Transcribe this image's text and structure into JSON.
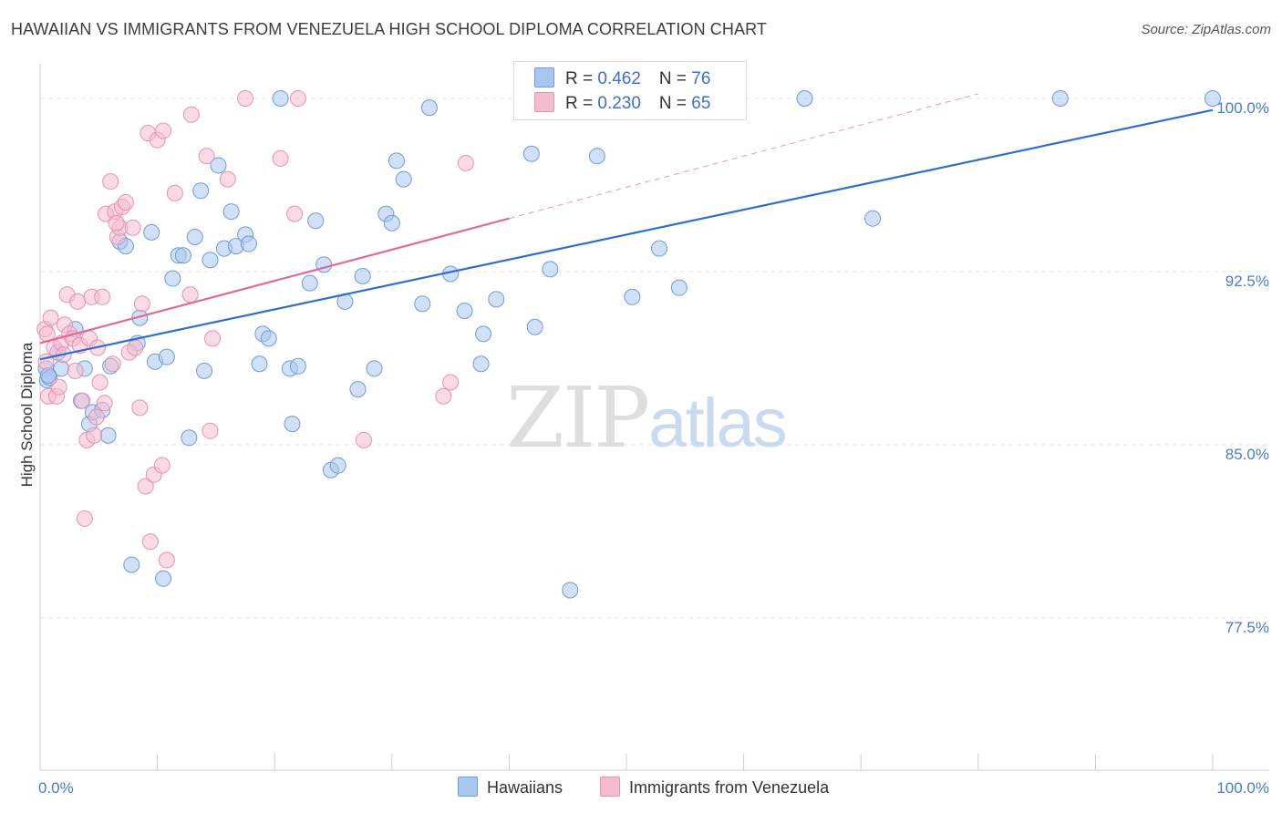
{
  "chart_data": {
    "type": "scatter",
    "title": "HAWAIIAN VS IMMIGRANTS FROM VENEZUELA HIGH SCHOOL DIPLOMA CORRELATION CHART",
    "source": "Source: ZipAtlas.com",
    "xlabel": "",
    "ylabel": "High School Diploma",
    "xlim": [
      0,
      100
    ],
    "ylim": [
      70.9,
      101.5
    ],
    "x_tick_labels": {
      "left": "0.0%",
      "right": "100.0%"
    },
    "y_ticks": [
      {
        "value": 100.0,
        "label": "100.0%"
      },
      {
        "value": 92.5,
        "label": "92.5%"
      },
      {
        "value": 85.0,
        "label": "85.0%"
      },
      {
        "value": 77.5,
        "label": "77.5%"
      }
    ],
    "watermark": {
      "zip": "ZIP",
      "atlas": "atlas"
    },
    "legend": [
      {
        "r_label": "R = ",
        "r_value": "0.462",
        "n_label": "N = ",
        "n_value": "76"
      },
      {
        "r_label": "R = ",
        "r_value": "0.230",
        "n_label": "N = ",
        "n_value": "65"
      }
    ],
    "series": [
      {
        "name": "Hawaiians",
        "color": "#a9c6ee",
        "stroke": "#6f9bd8",
        "line_color": "#2f6fcc",
        "trend": {
          "x0": 0,
          "y0": 88.7,
          "x1": 100,
          "y1": 99.5
        },
        "points": [
          [
            0.5,
            88.3
          ],
          [
            0.6,
            87.8
          ],
          [
            0.8,
            87.9
          ],
          [
            1.5,
            89.0
          ],
          [
            1.8,
            88.3
          ],
          [
            3.0,
            90.0
          ],
          [
            3.5,
            86.9
          ],
          [
            3.8,
            88.3
          ],
          [
            4.2,
            85.9
          ],
          [
            4.5,
            86.4
          ],
          [
            5.3,
            86.5
          ],
          [
            5.8,
            85.4
          ],
          [
            6.0,
            88.4
          ],
          [
            6.8,
            93.8
          ],
          [
            7.3,
            93.6
          ],
          [
            7.8,
            79.8
          ],
          [
            8.3,
            89.4
          ],
          [
            8.5,
            90.5
          ],
          [
            9.5,
            94.2
          ],
          [
            9.8,
            88.6
          ],
          [
            10.5,
            79.2
          ],
          [
            10.8,
            88.8
          ],
          [
            11.3,
            92.2
          ],
          [
            11.8,
            93.2
          ],
          [
            12.2,
            93.2
          ],
          [
            12.7,
            85.3
          ],
          [
            13.2,
            94.0
          ],
          [
            13.7,
            96.0
          ],
          [
            14.0,
            88.2
          ],
          [
            14.5,
            93.0
          ],
          [
            15.2,
            97.1
          ],
          [
            15.7,
            93.5
          ],
          [
            16.3,
            95.1
          ],
          [
            16.7,
            93.6
          ],
          [
            17.5,
            94.1
          ],
          [
            17.8,
            93.7
          ],
          [
            18.7,
            88.5
          ],
          [
            19.0,
            89.8
          ],
          [
            19.5,
            89.6
          ],
          [
            20.5,
            100.0
          ],
          [
            21.3,
            88.3
          ],
          [
            21.5,
            85.9
          ],
          [
            22.0,
            88.4
          ],
          [
            23.0,
            92.0
          ],
          [
            23.5,
            94.7
          ],
          [
            24.2,
            92.8
          ],
          [
            24.8,
            83.9
          ],
          [
            25.4,
            84.1
          ],
          [
            26.0,
            91.2
          ],
          [
            27.1,
            87.4
          ],
          [
            27.5,
            92.3
          ],
          [
            28.5,
            88.3
          ],
          [
            29.5,
            95.0
          ],
          [
            30.0,
            94.6
          ],
          [
            30.4,
            97.3
          ],
          [
            31.0,
            96.5
          ],
          [
            32.6,
            91.1
          ],
          [
            33.2,
            99.6
          ],
          [
            35.0,
            92.4
          ],
          [
            36.2,
            90.8
          ],
          [
            37.8,
            89.8
          ],
          [
            37.6,
            88.5
          ],
          [
            38.9,
            91.3
          ],
          [
            41.9,
            97.6
          ],
          [
            42.2,
            90.1
          ],
          [
            43.5,
            92.6
          ],
          [
            45.2,
            78.7
          ],
          [
            47.5,
            97.5
          ],
          [
            50.5,
            91.4
          ],
          [
            52.8,
            93.5
          ],
          [
            54.5,
            91.8
          ],
          [
            65.2,
            100.0
          ],
          [
            71.0,
            94.8
          ],
          [
            87.0,
            100.0
          ],
          [
            100.0,
            100.0
          ],
          [
            0.7,
            88.0
          ]
        ]
      },
      {
        "name": "Immigrants from Venezuela",
        "color": "#f5bcd0",
        "stroke": "#e891b0",
        "line_color": "#e06a94",
        "trend": {
          "x0": 0,
          "y0": 89.4,
          "x1": 40,
          "y1": 94.8
        },
        "trend_ext": {
          "x0": 40,
          "y0": 94.8,
          "x1": 80,
          "y1": 100.2
        },
        "points": [
          [
            0.4,
            90.0
          ],
          [
            0.5,
            88.6
          ],
          [
            0.7,
            87.1
          ],
          [
            0.9,
            90.5
          ],
          [
            1.2,
            89.2
          ],
          [
            1.4,
            87.1
          ],
          [
            1.6,
            87.5
          ],
          [
            1.8,
            89.4
          ],
          [
            2.1,
            90.2
          ],
          [
            2.3,
            91.5
          ],
          [
            2.5,
            89.8
          ],
          [
            2.8,
            89.6
          ],
          [
            3.0,
            88.2
          ],
          [
            3.2,
            91.2
          ],
          [
            3.4,
            89.3
          ],
          [
            3.6,
            86.9
          ],
          [
            3.8,
            81.8
          ],
          [
            4.0,
            85.2
          ],
          [
            4.2,
            89.6
          ],
          [
            4.4,
            91.4
          ],
          [
            4.6,
            85.4
          ],
          [
            4.9,
            89.2
          ],
          [
            5.1,
            87.7
          ],
          [
            5.3,
            91.4
          ],
          [
            5.5,
            86.8
          ],
          [
            5.6,
            95.0
          ],
          [
            6.0,
            96.4
          ],
          [
            6.2,
            88.5
          ],
          [
            6.4,
            95.1
          ],
          [
            6.6,
            94.0
          ],
          [
            6.8,
            94.4
          ],
          [
            7.0,
            95.3
          ],
          [
            7.3,
            95.5
          ],
          [
            7.6,
            89.0
          ],
          [
            7.9,
            94.4
          ],
          [
            8.1,
            89.2
          ],
          [
            8.5,
            86.6
          ],
          [
            8.7,
            91.1
          ],
          [
            9.0,
            83.2
          ],
          [
            9.2,
            98.5
          ],
          [
            9.4,
            80.8
          ],
          [
            9.7,
            83.7
          ],
          [
            10.0,
            98.2
          ],
          [
            10.4,
            84.1
          ],
          [
            10.5,
            98.6
          ],
          [
            10.8,
            80.0
          ],
          [
            11.5,
            95.9
          ],
          [
            12.8,
            91.5
          ],
          [
            12.9,
            99.3
          ],
          [
            14.2,
            97.5
          ],
          [
            14.5,
            85.6
          ],
          [
            14.7,
            89.6
          ],
          [
            16.0,
            96.5
          ],
          [
            17.5,
            100.0
          ],
          [
            20.5,
            97.4
          ],
          [
            21.7,
            95.0
          ],
          [
            22.0,
            100.0
          ],
          [
            27.6,
            85.2
          ],
          [
            34.4,
            87.1
          ],
          [
            35.0,
            87.7
          ],
          [
            36.3,
            97.2
          ],
          [
            0.6,
            89.8
          ],
          [
            2.0,
            88.9
          ],
          [
            4.8,
            86.2
          ],
          [
            6.5,
            94.6
          ]
        ]
      }
    ]
  }
}
